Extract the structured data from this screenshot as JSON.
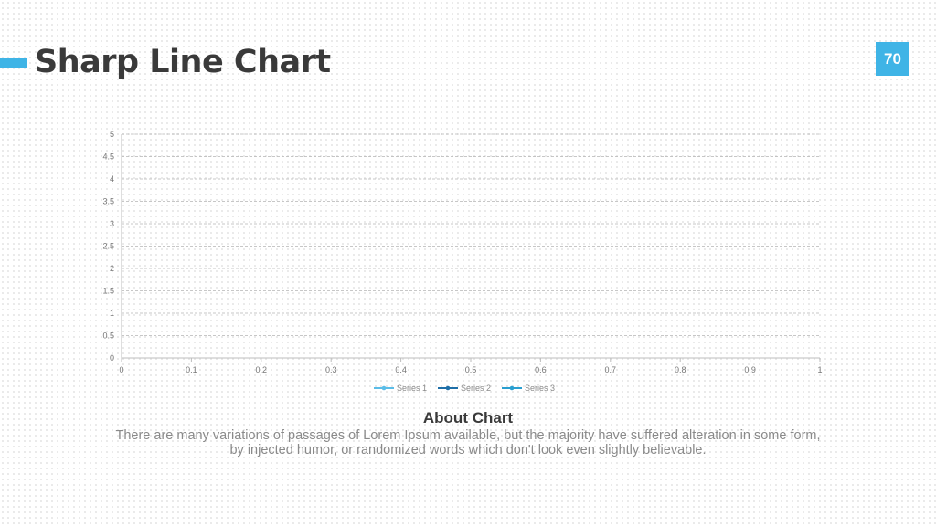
{
  "header": {
    "title": "Sharp Line Chart",
    "page_number": "70"
  },
  "colors": {
    "accent": "#3fb4e6",
    "text_dark": "#3a3a3a",
    "text_muted": "#8a8a8a",
    "grid": "#b5b5b5"
  },
  "chart_data": {
    "type": "line",
    "title": "",
    "xlabel": "",
    "ylabel": "",
    "xlim": [
      0,
      1
    ],
    "ylim": [
      0,
      5
    ],
    "x_ticks": [
      "0",
      "0.1",
      "0.2",
      "0.3",
      "0.4",
      "0.5",
      "0.6",
      "0.7",
      "0.8",
      "0.9",
      "1"
    ],
    "y_ticks": [
      "0",
      "0.5",
      "1",
      "1.5",
      "2",
      "2.5",
      "3",
      "3.5",
      "4",
      "4.5",
      "5"
    ],
    "grid": true,
    "grid_style": "dashed",
    "legend_position": "bottom",
    "series": [
      {
        "name": "Series 1",
        "color": "#5bbde8",
        "values": []
      },
      {
        "name": "Series 2",
        "color": "#1f6fa8",
        "values": []
      },
      {
        "name": "Series 3",
        "color": "#2a9fd0",
        "values": []
      }
    ]
  },
  "about": {
    "title": "About Chart",
    "text": "There are many variations of passages of Lorem Ipsum available, but the majority have suffered alteration in some form, by injected humor, or randomized words which don't look even slightly believable."
  }
}
